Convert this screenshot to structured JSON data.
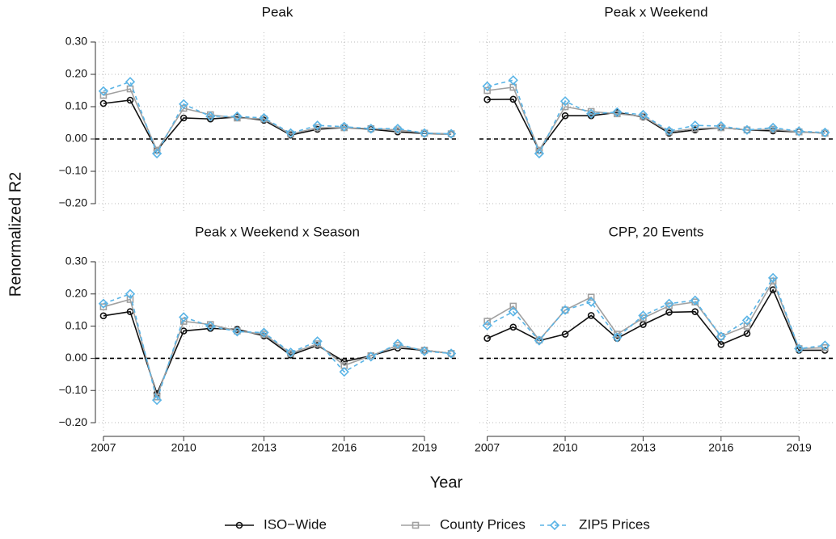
{
  "chart_data": [
    {
      "type": "line",
      "title": "Peak",
      "x": [
        2007,
        2008,
        2009,
        2010,
        2011,
        2012,
        2013,
        2014,
        2015,
        2016,
        2017,
        2018,
        2019,
        2020
      ],
      "xlim": [
        2006.7,
        2020.3
      ],
      "xticks": [
        2007,
        2010,
        2013,
        2016,
        2019
      ],
      "ylim": [
        -0.23,
        0.33
      ],
      "yticks": [
        {
          "value": -0.2,
          "label": "−0.20"
        },
        {
          "value": -0.1,
          "label": "−0.10"
        },
        {
          "value": 0,
          "label": "0.00"
        },
        {
          "value": 0.1,
          "label": "0.10"
        },
        {
          "value": 0.2,
          "label": "0.20"
        },
        {
          "value": 0.3,
          "label": "0.30"
        }
      ],
      "grid": true,
      "hline": 0,
      "series": [
        {
          "name": "ISO−Wide",
          "color": "#111111",
          "marker": "circle",
          "dashed": false,
          "values": [
            0.11,
            0.12,
            -0.035,
            0.065,
            0.062,
            0.068,
            0.058,
            0.012,
            0.03,
            0.035,
            0.03,
            0.022,
            0.017,
            0.015
          ]
        },
        {
          "name": "County Prices",
          "color": "#a0a0a0",
          "marker": "square",
          "dashed": false,
          "values": [
            0.135,
            0.155,
            -0.035,
            0.095,
            0.075,
            0.065,
            0.062,
            0.015,
            0.035,
            0.035,
            0.032,
            0.028,
            0.018,
            0.016
          ]
        },
        {
          "name": "ZIP5 Prices",
          "color": "#5ab4e6",
          "marker": "diamond",
          "dashed": true,
          "values": [
            0.148,
            0.177,
            -0.045,
            0.108,
            0.07,
            0.07,
            0.065,
            0.018,
            0.042,
            0.038,
            0.032,
            0.032,
            0.018,
            0.016
          ]
        }
      ]
    },
    {
      "type": "line",
      "title": "Peak x Weekend",
      "x": [
        2007,
        2008,
        2009,
        2010,
        2011,
        2012,
        2013,
        2014,
        2015,
        2016,
        2017,
        2018,
        2019,
        2020
      ],
      "xlim": [
        2006.7,
        2020.3
      ],
      "xticks": [
        2007,
        2010,
        2013,
        2016,
        2019
      ],
      "ylim": [
        -0.23,
        0.33
      ],
      "yticks": [
        -0.2,
        -0.1,
        0,
        0.1,
        0.2,
        0.3
      ],
      "grid": true,
      "hline": 0,
      "series": [
        {
          "name": "ISO−Wide",
          "color": "#111111",
          "marker": "circle",
          "dashed": false,
          "values": [
            0.122,
            0.123,
            -0.035,
            0.072,
            0.072,
            0.082,
            0.068,
            0.018,
            0.028,
            0.035,
            0.028,
            0.025,
            0.022,
            0.018
          ]
        },
        {
          "name": "County Prices",
          "color": "#a0a0a0",
          "marker": "square",
          "dashed": false,
          "values": [
            0.15,
            0.16,
            -0.035,
            0.1,
            0.085,
            0.078,
            0.07,
            0.022,
            0.032,
            0.035,
            0.028,
            0.03,
            0.022,
            0.018
          ]
        },
        {
          "name": "ZIP5 Prices",
          "color": "#5ab4e6",
          "marker": "diamond",
          "dashed": true,
          "values": [
            0.163,
            0.182,
            -0.045,
            0.117,
            0.078,
            0.083,
            0.075,
            0.025,
            0.042,
            0.04,
            0.028,
            0.035,
            0.024,
            0.02
          ]
        }
      ]
    },
    {
      "type": "line",
      "title": "Peak x Weekend x Season",
      "x": [
        2007,
        2008,
        2009,
        2010,
        2011,
        2012,
        2013,
        2014,
        2015,
        2016,
        2017,
        2018,
        2019,
        2020
      ],
      "xlim": [
        2006.7,
        2020.3
      ],
      "xticks": [
        2007,
        2010,
        2013,
        2016,
        2019
      ],
      "ylim": [
        -0.23,
        0.33
      ],
      "yticks": [
        {
          "value": -0.2,
          "label": "−0.20"
        },
        {
          "value": -0.1,
          "label": "−0.10"
        },
        {
          "value": 0,
          "label": "0.00"
        },
        {
          "value": 0.1,
          "label": "0.10"
        },
        {
          "value": 0.2,
          "label": "0.20"
        },
        {
          "value": 0.3,
          "label": "0.30"
        }
      ],
      "grid": true,
      "hline": 0,
      "series": [
        {
          "name": "ISO−Wide",
          "color": "#111111",
          "marker": "circle",
          "dashed": false,
          "values": [
            0.132,
            0.145,
            -0.11,
            0.085,
            0.093,
            0.09,
            0.07,
            0.01,
            0.04,
            -0.01,
            0.008,
            0.032,
            0.025,
            0.015
          ]
        },
        {
          "name": "County Prices",
          "color": "#a0a0a0",
          "marker": "square",
          "dashed": false,
          "values": [
            0.16,
            0.183,
            -0.12,
            0.115,
            0.105,
            0.085,
            0.075,
            0.015,
            0.045,
            -0.022,
            0.008,
            0.04,
            0.025,
            0.015
          ]
        },
        {
          "name": "ZIP5 Prices",
          "color": "#5ab4e6",
          "marker": "diamond",
          "dashed": true,
          "values": [
            0.17,
            0.2,
            -0.13,
            0.128,
            0.1,
            0.083,
            0.08,
            0.018,
            0.053,
            -0.042,
            0.005,
            0.045,
            0.022,
            0.015
          ]
        }
      ]
    },
    {
      "type": "line",
      "title": "CPP, 20 Events",
      "x": [
        2007,
        2008,
        2009,
        2010,
        2011,
        2012,
        2013,
        2014,
        2015,
        2016,
        2017,
        2018,
        2019,
        2020
      ],
      "xlim": [
        2006.7,
        2020.3
      ],
      "xticks": [
        2007,
        2010,
        2013,
        2016,
        2019
      ],
      "ylim": [
        -0.23,
        0.33
      ],
      "yticks": [
        -0.2,
        -0.1,
        0,
        0.1,
        0.2,
        0.3
      ],
      "grid": true,
      "hline": 0,
      "series": [
        {
          "name": "ISO−Wide",
          "color": "#111111",
          "marker": "circle",
          "dashed": false,
          "values": [
            0.062,
            0.097,
            0.055,
            0.075,
            0.133,
            0.062,
            0.105,
            0.143,
            0.145,
            0.043,
            0.077,
            0.213,
            0.025,
            0.025
          ]
        },
        {
          "name": "County Prices",
          "color": "#a0a0a0",
          "marker": "square",
          "dashed": false,
          "values": [
            0.115,
            0.162,
            0.057,
            0.15,
            0.19,
            0.075,
            0.125,
            0.163,
            0.175,
            0.068,
            0.1,
            0.24,
            0.03,
            0.033
          ]
        },
        {
          "name": "ZIP5 Prices",
          "color": "#5ab4e6",
          "marker": "diamond",
          "dashed": true,
          "values": [
            0.102,
            0.145,
            0.055,
            0.15,
            0.175,
            0.065,
            0.133,
            0.17,
            0.18,
            0.068,
            0.118,
            0.25,
            0.03,
            0.04
          ]
        }
      ]
    }
  ],
  "shared": {
    "xlabel": "Year",
    "ylabel": "Renormalized R2"
  }
}
